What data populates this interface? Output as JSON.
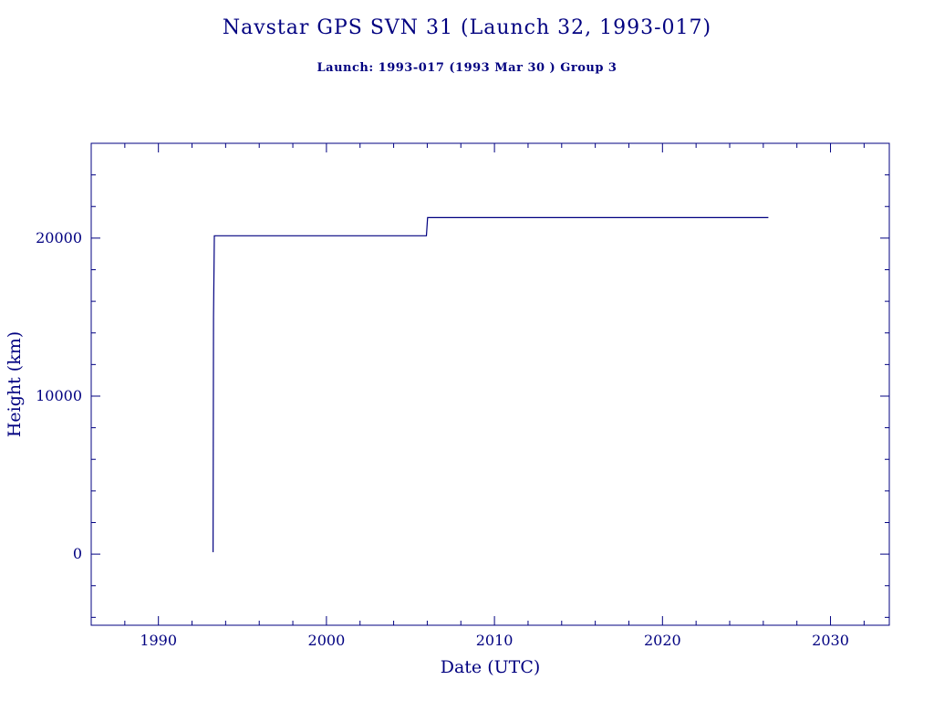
{
  "header": {
    "title": "Navstar GPS SVN 31 (Launch 32, 1993-017)",
    "subtitle": "Launch: 1993-017  (1993 Mar 30 )  Group 3"
  },
  "colors": {
    "accent": "#000080",
    "background": "#ffffff"
  },
  "chart_data": {
    "type": "line",
    "title": "Navstar GPS SVN 31 (Launch 32, 1993-017)",
    "subtitle": "Launch: 1993-017  (1993 Mar 30 )  Group 3",
    "xlabel": "Date (UTC)",
    "ylabel": "Height (km)",
    "xlim": [
      1986,
      2033.5
    ],
    "ylim": [
      -4500,
      26000
    ],
    "xticks": [
      1990,
      2000,
      2010,
      2020,
      2030
    ],
    "yticks": [
      0,
      10000,
      20000
    ],
    "x_minor_step": 2,
    "y_minor_step": 2000,
    "grid": false,
    "legend": "none",
    "line_color": "#000080",
    "series": [
      {
        "name": "height-km",
        "points": [
          [
            1993.25,
            120
          ],
          [
            1993.28,
            15000
          ],
          [
            1993.33,
            20150
          ],
          [
            2005.95,
            20150
          ],
          [
            2006.02,
            21300
          ],
          [
            2026.3,
            21300
          ]
        ]
      }
    ]
  }
}
